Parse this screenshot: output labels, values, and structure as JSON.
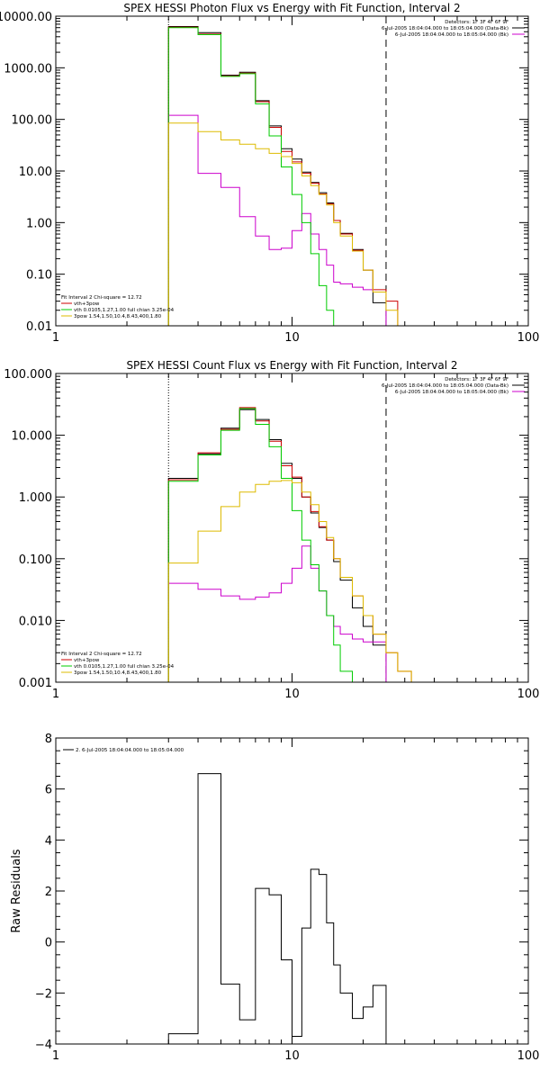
{
  "chart_data": [
    {
      "type": "line",
      "title": "SPEX HESSI Photon Flux vs Energy with Fit Function, Interval 2",
      "xscale": "log",
      "yscale": "log",
      "xlim": [
        1,
        100
      ],
      "ylim": [
        0.01,
        10000
      ],
      "x_tick_labels": [
        "1",
        "10",
        "100"
      ],
      "y_tick_labels": [
        "0.01",
        "0.10",
        "1.00",
        "10.00",
        "100.00",
        "1000.00",
        "10000.00"
      ],
      "info_lines": [
        "Detectors: 1F 3F 4F 6F 9F",
        "6-Jul-2005 18:04:04.000 to 18:05:04.000 (Data-Bk)",
        "6-Jul-2005 18:04:04.000 to 18:05:04.000 (Bk)"
      ],
      "legend": [
        "Fit Interval 2   Chi-square = 12.72",
        "vth+3pow",
        "vth 0.0105,1.27,1.00  full chian 3.25e-04",
        "3pow 1.54,1.50,10.4,8.43,400,1.80"
      ],
      "vlines": [
        {
          "x": 3,
          "style": "dotted"
        },
        {
          "x": 25,
          "style": "dashed"
        }
      ],
      "bin_edges": [
        3,
        4,
        5,
        6,
        7,
        8,
        9,
        10,
        11,
        12,
        13,
        14,
        15,
        16,
        18,
        20,
        22,
        25,
        28,
        32
      ],
      "series": [
        {
          "name": "Data-Bk",
          "color": "#000000",
          "values": [
            6300,
            4800,
            720,
            820,
            230,
            75,
            27,
            17,
            9.5,
            6.0,
            3.8,
            2.4,
            1.1,
            0.62,
            0.3,
            0.12,
            0.028,
            null,
            null
          ]
        },
        {
          "name": "Bk",
          "color": "#cc00cc",
          "values": [
            120,
            9.0,
            4.8,
            1.3,
            0.55,
            0.3,
            0.32,
            0.7,
            1.5,
            0.6,
            0.3,
            0.15,
            0.07,
            0.065,
            0.056,
            0.05,
            0.045,
            null,
            null
          ]
        },
        {
          "name": "vth+3pow",
          "color": "#cc0000",
          "values": [
            6100,
            4500,
            700,
            790,
            220,
            70,
            24,
            15,
            9.0,
            5.8,
            3.6,
            2.3,
            1.1,
            0.6,
            0.29,
            0.12,
            0.05,
            0.03,
            0.01
          ]
        },
        {
          "name": "vth",
          "color": "#00cc00",
          "values": [
            6000,
            4400,
            680,
            770,
            200,
            48,
            12,
            3.5,
            1.0,
            0.25,
            0.06,
            0.02,
            null,
            null,
            null,
            null,
            null,
            null,
            null
          ]
        },
        {
          "name": "3pow",
          "color": "#ddbb00",
          "values": [
            85,
            58,
            40,
            33,
            27,
            22,
            19,
            14,
            8.0,
            5.2,
            3.5,
            2.2,
            1.0,
            0.55,
            0.28,
            0.12,
            0.045,
            0.02,
            0.01
          ]
        }
      ]
    },
    {
      "type": "line",
      "title": "SPEX HESSI Count Flux vs Energy with Fit Function, Interval 2",
      "xscale": "log",
      "yscale": "log",
      "xlim": [
        1,
        100
      ],
      "ylim": [
        0.001,
        100
      ],
      "x_tick_labels": [
        "1",
        "10",
        "100"
      ],
      "y_tick_labels": [
        "0.001",
        "0.010",
        "0.100",
        "1.000",
        "10.000",
        "100.000"
      ],
      "info_lines": [
        "Detectors: 1F 3F 4F 6F 9F",
        "6-Jul-2005 18:04:04.000 to 18:05:04.000 (Data-Bk)",
        "6-Jul-2005 18:04:04.000 to 18:05:04.000 (Bk)"
      ],
      "legend": [
        "Fit Interval 2   Chi-square = 12.72",
        "vth+3pow",
        "vth 0.0105,1.27,1.00  full chian 3.25e-04",
        "3pow 1.54,1.50,10.4,8.43,400,1.80"
      ],
      "vlines": [
        {
          "x": 3,
          "style": "dotted"
        },
        {
          "x": 25,
          "style": "dashed"
        }
      ],
      "bin_edges": [
        3,
        4,
        5,
        6,
        7,
        8,
        9,
        10,
        11,
        12,
        13,
        14,
        15,
        16,
        18,
        20,
        22,
        25,
        28,
        32
      ],
      "series": [
        {
          "name": "Data-Bk",
          "color": "#000000",
          "values": [
            2.0,
            5.0,
            13,
            26,
            18,
            8.5,
            3.5,
            2.0,
            1.0,
            0.55,
            0.32,
            0.2,
            0.09,
            0.045,
            0.016,
            0.008,
            0.004,
            null,
            null
          ]
        },
        {
          "name": "Bk",
          "color": "#cc00cc",
          "values": [
            0.04,
            0.032,
            0.025,
            0.022,
            0.024,
            0.028,
            0.04,
            0.07,
            0.16,
            0.07,
            0.03,
            0.012,
            0.008,
            0.006,
            0.005,
            0.0045,
            0.0045,
            null,
            null
          ]
        },
        {
          "name": "vth+3pow",
          "color": "#cc0000",
          "values": [
            1.9,
            5.2,
            12.5,
            28,
            17,
            8.0,
            3.2,
            2.1,
            1.0,
            0.58,
            0.33,
            0.2,
            0.1,
            0.05,
            0.025,
            0.012,
            0.006,
            0.003,
            0.0015
          ]
        },
        {
          "name": "vth",
          "color": "#00cc00",
          "values": [
            1.8,
            4.8,
            12,
            27,
            15,
            6.5,
            2.0,
            0.6,
            0.2,
            0.08,
            0.03,
            0.012,
            0.004,
            0.0015,
            null,
            null,
            null,
            null,
            null
          ]
        },
        {
          "name": "3pow",
          "color": "#ddbb00",
          "values": [
            0.085,
            0.28,
            0.7,
            1.2,
            1.6,
            1.8,
            1.85,
            1.7,
            1.2,
            0.75,
            0.4,
            0.22,
            0.1,
            0.05,
            0.025,
            0.012,
            0.006,
            0.003,
            0.0015
          ]
        }
      ]
    },
    {
      "type": "line",
      "xscale": "log",
      "xlim": [
        1,
        100
      ],
      "ylim": [
        -4,
        8
      ],
      "ylabel": "Raw Residuals",
      "x_tick_labels": [
        "1",
        "10",
        "100"
      ],
      "y_tick_labels": [
        "−4",
        "−2",
        "0",
        "2",
        "4",
        "6",
        "8"
      ],
      "legend": [
        "2.  6-Jul-2005 18:04:04.000 to 18:05:04.000"
      ],
      "bin_edges": [
        3,
        4,
        5,
        6,
        7,
        8,
        9,
        10,
        11,
        12,
        13,
        14,
        15,
        16,
        18,
        20,
        22,
        25
      ],
      "series": [
        {
          "color": "#000000",
          "values": [
            -3.6,
            6.6,
            -1.65,
            -3.05,
            2.1,
            1.85,
            -0.7,
            -3.7,
            0.55,
            2.85,
            2.65,
            0.75,
            -0.9,
            -2.0,
            -3.0,
            -2.55,
            -1.7
          ]
        }
      ]
    }
  ]
}
